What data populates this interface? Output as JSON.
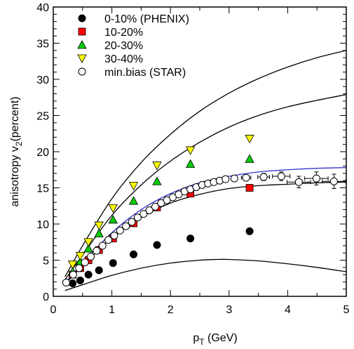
{
  "chart_data": {
    "type": "scatter",
    "xlabel": "p",
    "xlabel_sub": "T",
    "xlabel_unit": " (GeV)",
    "ylabel": "anisotropy v",
    "ylabel_sub": "2",
    "ylabel_unit": "(percent)",
    "xlim": [
      0,
      5
    ],
    "ylim": [
      0,
      40
    ],
    "xticks": [
      0,
      1,
      2,
      3,
      4,
      5
    ],
    "yticks": [
      0,
      5,
      10,
      15,
      20,
      25,
      30,
      35,
      40
    ],
    "grid": false,
    "legend_position": "top-left",
    "series": [
      {
        "name": "0-10% (PHENIX)",
        "marker": "circle-filled",
        "color": "#000000",
        "x": [
          0.33,
          0.46,
          0.6,
          0.78,
          1.02,
          1.37,
          1.77,
          2.34,
          3.35
        ],
        "y": [
          1.8,
          2.2,
          3.0,
          3.6,
          4.6,
          5.8,
          7.1,
          8.0,
          9.0
        ]
      },
      {
        "name": "10-20%",
        "marker": "square",
        "color": "#ff0000",
        "x": [
          0.33,
          0.46,
          0.6,
          0.78,
          1.02,
          1.37,
          1.77,
          2.34,
          3.35
        ],
        "y": [
          3.0,
          3.9,
          5.0,
          6.4,
          8.0,
          10.1,
          12.3,
          14.2,
          15.0
        ]
      },
      {
        "name": "20-30%",
        "marker": "triangle-up",
        "color": "#00cc00",
        "x": [
          0.33,
          0.46,
          0.6,
          0.78,
          1.02,
          1.37,
          1.77,
          2.34,
          3.35
        ],
        "y": [
          3.4,
          4.8,
          6.6,
          8.7,
          10.6,
          13.2,
          15.9,
          18.3,
          19.0
        ]
      },
      {
        "name": "30-40%",
        "marker": "triangle-down",
        "color": "#ffff00",
        "x": [
          0.33,
          0.46,
          0.6,
          0.78,
          1.02,
          1.37,
          1.77,
          2.34,
          3.35
        ],
        "y": [
          4.4,
          5.6,
          7.5,
          9.8,
          12.2,
          15.3,
          18.1,
          20.2,
          21.8
        ]
      },
      {
        "name": "min.bias (STAR)",
        "marker": "circle-open",
        "color": "#000000",
        "x": [
          0.22,
          0.34,
          0.44,
          0.54,
          0.64,
          0.74,
          0.84,
          0.94,
          1.04,
          1.14,
          1.24,
          1.34,
          1.44,
          1.54,
          1.64,
          1.74,
          1.84,
          1.94,
          2.04,
          2.14,
          2.24,
          2.34,
          2.44,
          2.54,
          2.64,
          2.74,
          2.84,
          2.94,
          3.09,
          3.29,
          3.59,
          3.89,
          4.19,
          4.49,
          4.79
        ],
        "y": [
          1.9,
          3.0,
          3.9,
          4.7,
          5.5,
          6.3,
          7.0,
          7.8,
          8.4,
          9.1,
          9.7,
          10.3,
          10.9,
          11.4,
          11.9,
          12.4,
          12.9,
          13.3,
          13.7,
          14.1,
          14.5,
          14.8,
          15.1,
          15.4,
          15.6,
          15.8,
          16.0,
          16.2,
          16.3,
          16.4,
          16.5,
          16.6,
          15.8,
          16.3,
          15.9
        ],
        "xerr": [
          0,
          0,
          0,
          0,
          0,
          0,
          0,
          0,
          0,
          0,
          0,
          0,
          0,
          0,
          0,
          0,
          0,
          0,
          0,
          0,
          0,
          0,
          0,
          0,
          0,
          0,
          0,
          0,
          0.05,
          0.08,
          0.1,
          0.15,
          0.2,
          0.2,
          0.2
        ],
        "yerr": [
          0,
          0,
          0,
          0,
          0,
          0,
          0,
          0,
          0,
          0,
          0,
          0,
          0,
          0,
          0,
          0,
          0,
          0,
          0,
          0,
          0,
          0,
          0,
          0,
          0,
          0,
          0,
          0,
          0.3,
          0.4,
          0.5,
          0.6,
          0.8,
          0.9,
          1.0
        ]
      }
    ],
    "curves": [
      {
        "color": "#000000",
        "x": [
          0.2,
          0.5,
          1.0,
          1.5,
          2.0,
          2.5,
          2.8,
          3.0,
          3.5,
          4.0,
          4.5,
          5.0
        ],
        "y": [
          0.8,
          1.6,
          2.9,
          3.9,
          4.6,
          5.0,
          5.1,
          5.1,
          4.9,
          4.5,
          4.0,
          3.4
        ]
      },
      {
        "color": "#000000",
        "x": [
          0.2,
          0.5,
          1.0,
          1.5,
          2.0,
          2.5,
          3.0,
          3.5,
          4.0,
          4.5,
          5.0
        ],
        "y": [
          1.7,
          4.2,
          8.1,
          10.9,
          12.9,
          14.1,
          14.9,
          15.3,
          15.5,
          15.7,
          15.8
        ]
      },
      {
        "color": "#3333cc",
        "x": [
          0.2,
          0.5,
          1.0,
          1.5,
          2.0,
          2.5,
          3.0,
          3.5,
          4.0,
          4.5,
          5.0
        ],
        "y": [
          1.8,
          4.6,
          8.8,
          12.0,
          14.2,
          15.7,
          16.6,
          17.2,
          17.5,
          17.7,
          17.8
        ]
      },
      {
        "color": "#000000",
        "x": [
          0.2,
          0.5,
          1.0,
          1.5,
          2.0,
          2.5,
          3.0,
          3.5,
          4.0,
          4.5,
          5.0
        ],
        "y": [
          2.3,
          5.7,
          11.2,
          15.4,
          18.7,
          21.3,
          23.4,
          25.0,
          26.2,
          27.1,
          27.9
        ]
      },
      {
        "color": "#000000",
        "x": [
          0.2,
          0.5,
          1.0,
          1.5,
          2.0,
          2.5,
          3.0,
          3.5,
          4.0,
          4.5,
          5.0
        ],
        "y": [
          2.7,
          7.0,
          13.5,
          18.5,
          22.4,
          25.6,
          28.1,
          30.1,
          31.7,
          33.0,
          34.0
        ]
      }
    ]
  }
}
